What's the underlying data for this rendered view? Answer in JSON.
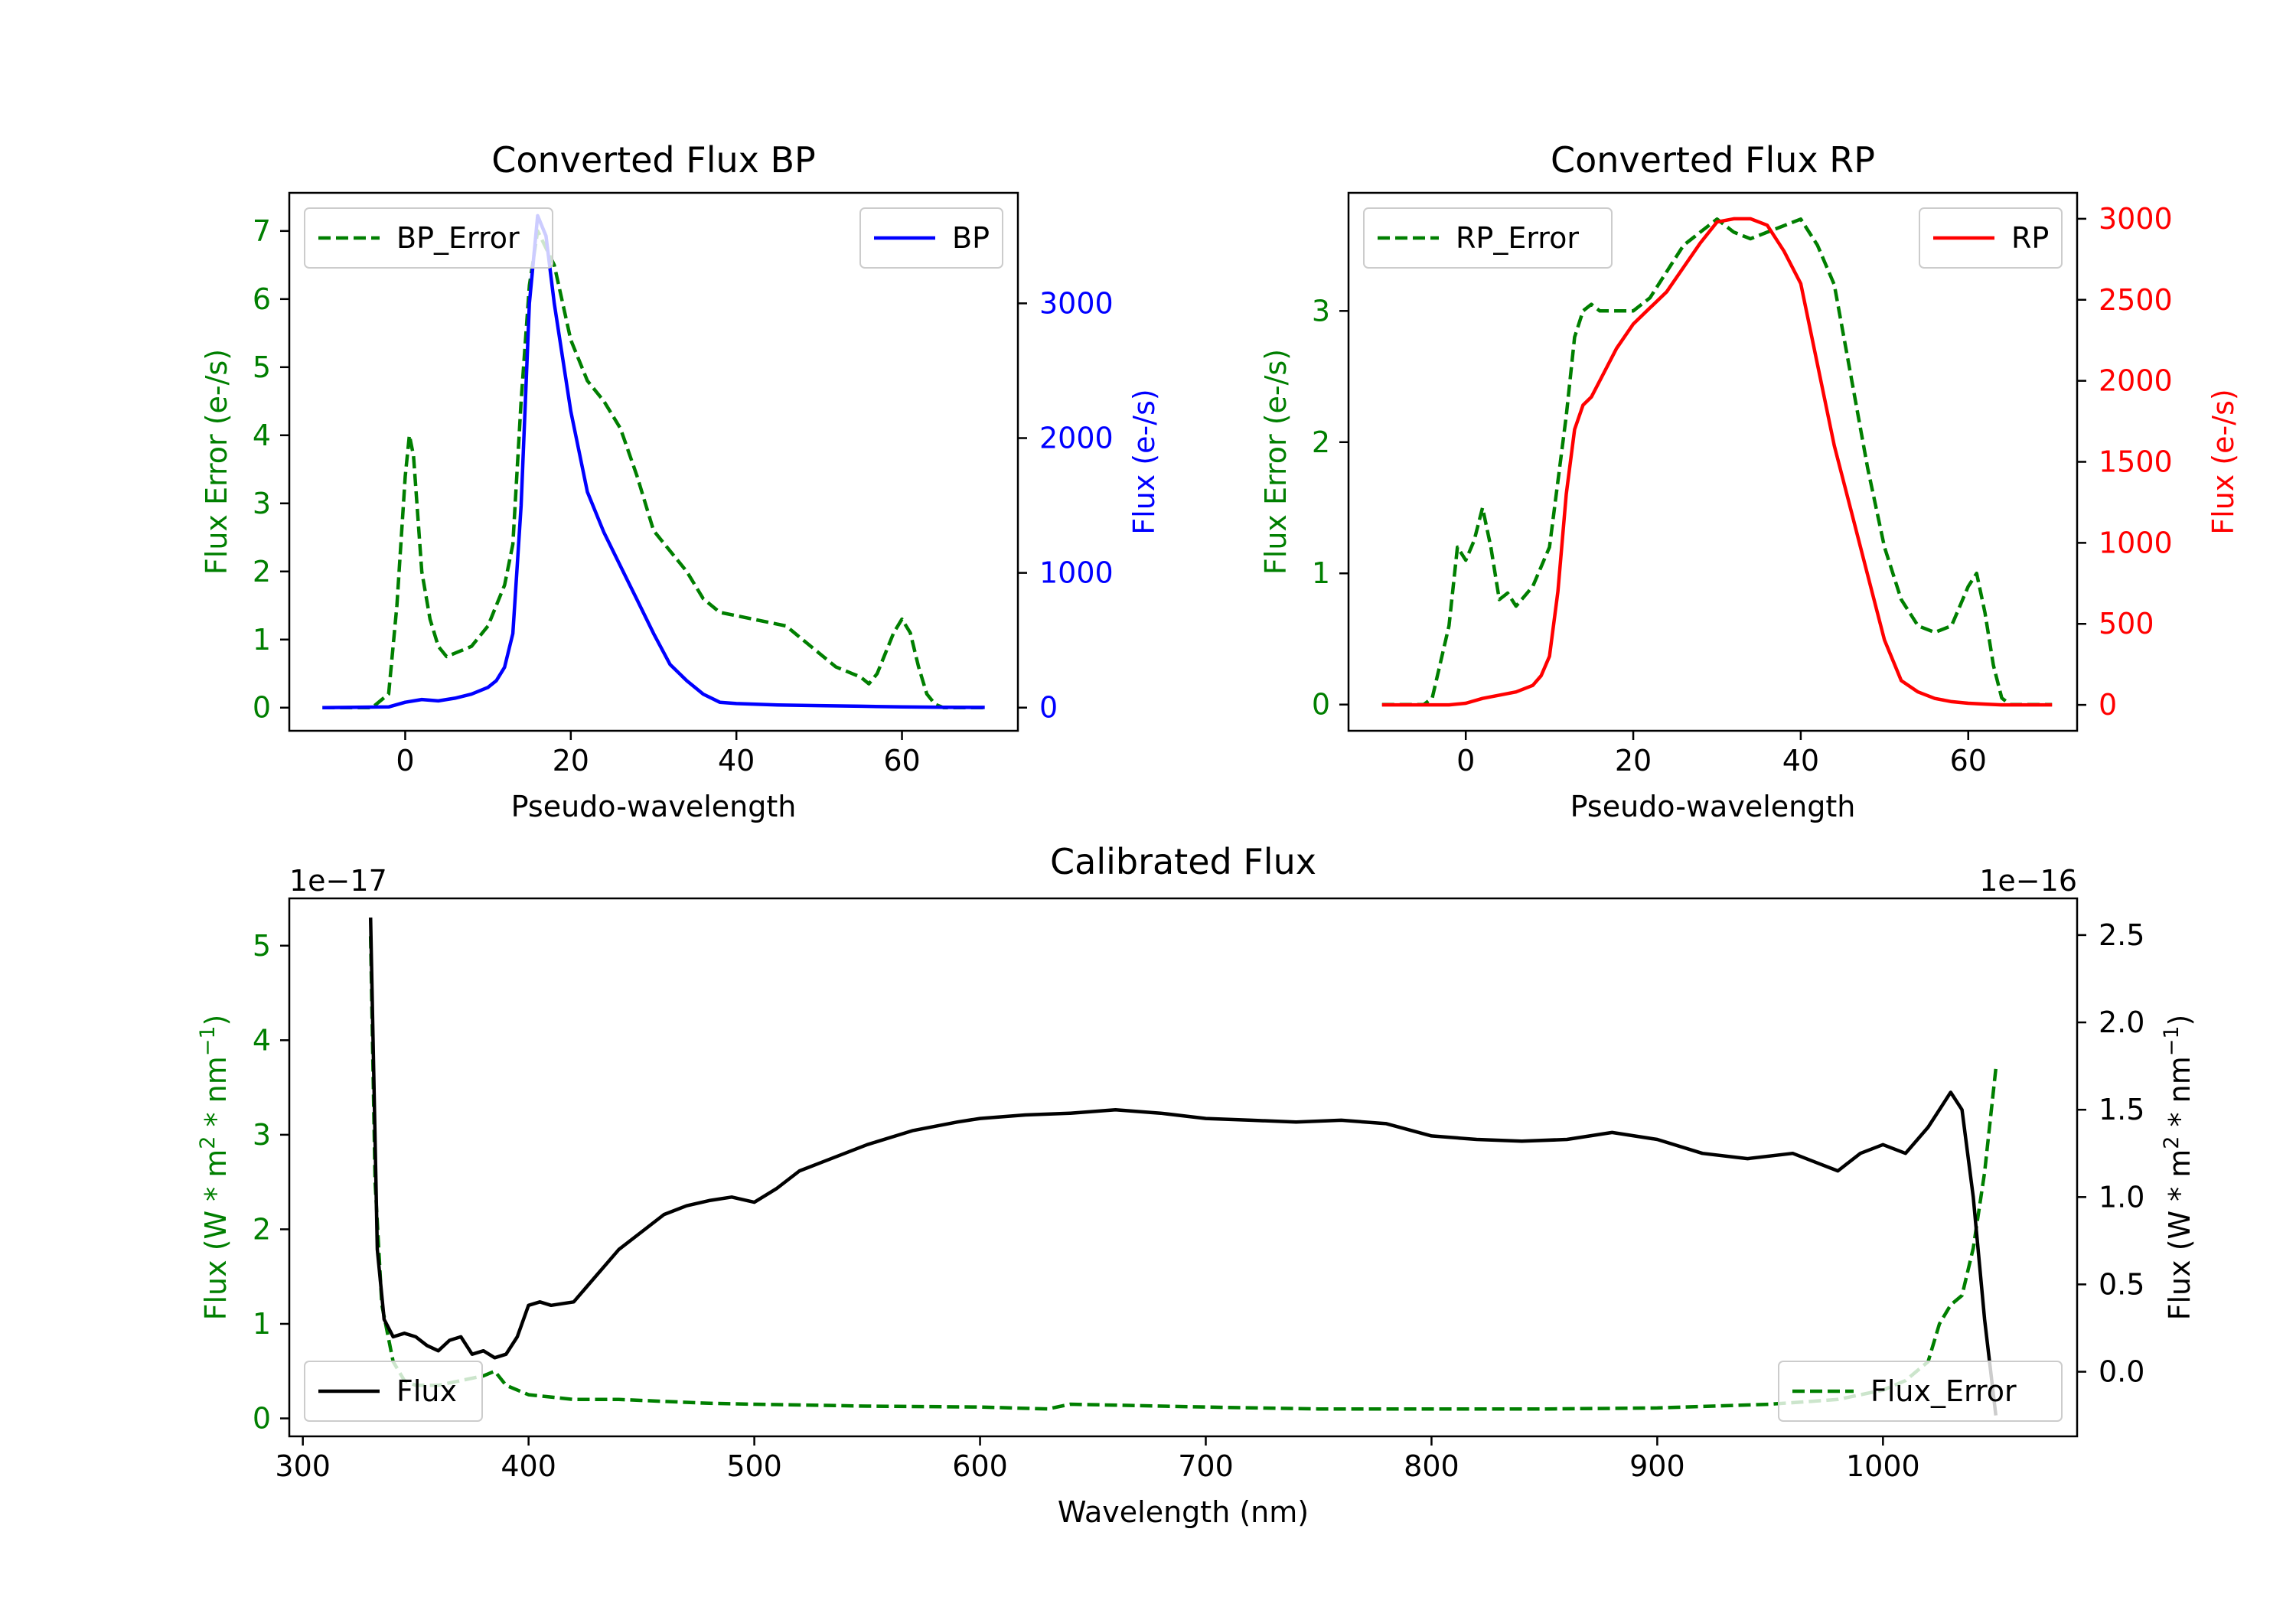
{
  "chart_data": [
    {
      "type": "line",
      "title": "Converted Flux BP",
      "xlabel": "Pseudo-wavelength",
      "ylabel_left": "Flux Error (e-/s)",
      "ylabel_right": "Flux (e-/s)",
      "xlim": [
        -14,
        74
      ],
      "ylim_left": [
        -0.34,
        7.56
      ],
      "ylim_right": [
        -172,
        3820
      ],
      "xticks": [
        "0",
        "20",
        "40",
        "60"
      ],
      "yticks_left": [
        "0",
        "1",
        "2",
        "3",
        "4",
        "5",
        "6",
        "7"
      ],
      "yticks_right": [
        "0",
        "1000",
        "2000",
        "3000"
      ],
      "series": [
        {
          "name": "BP_Error",
          "axis": "left",
          "style": "dashed",
          "color": "#007f00",
          "x": [
            -10,
            -4,
            -2,
            -1,
            0,
            0.5,
            1,
            2,
            3,
            4,
            5,
            6,
            8,
            10,
            12,
            13,
            14,
            15,
            16,
            18,
            20,
            22,
            24,
            26,
            28,
            30,
            32,
            34,
            36,
            38,
            40,
            42,
            44,
            46,
            48,
            50,
            52,
            54,
            55,
            56,
            57,
            58,
            59,
            60,
            61,
            62,
            63,
            64,
            65,
            66,
            68,
            70
          ],
          "values": [
            0,
            0,
            0.2,
            1.5,
            3.4,
            4,
            3.7,
            2,
            1.3,
            0.9,
            0.75,
            0.8,
            0.9,
            1.2,
            1.8,
            2.4,
            4.5,
            6.2,
            7,
            6.5,
            5.4,
            4.8,
            4.5,
            4.1,
            3.4,
            2.6,
            2.3,
            2,
            1.6,
            1.4,
            1.35,
            1.3,
            1.25,
            1.2,
            1,
            0.8,
            0.6,
            0.5,
            0.45,
            0.35,
            0.5,
            0.8,
            1.1,
            1.3,
            1.1,
            0.6,
            0.2,
            0.05,
            0,
            0,
            0,
            0
          ]
        },
        {
          "name": "BP",
          "axis": "right",
          "style": "solid",
          "color": "#0000ff",
          "x": [
            -10,
            -2,
            0,
            2,
            4,
            6,
            8,
            10,
            11,
            12,
            13,
            14,
            15,
            16,
            17,
            18,
            20,
            22,
            24,
            26,
            28,
            30,
            32,
            34,
            36,
            38,
            40,
            45,
            50,
            55,
            60,
            65,
            70
          ],
          "values": [
            0,
            5,
            40,
            60,
            50,
            70,
            100,
            150,
            200,
            300,
            550,
            1500,
            3000,
            3650,
            3500,
            3000,
            2200,
            1600,
            1300,
            1050,
            800,
            550,
            320,
            200,
            100,
            40,
            30,
            20,
            15,
            10,
            5,
            3,
            2
          ]
        }
      ],
      "legend": [
        {
          "label": "BP_Error",
          "position": "upper-left"
        },
        {
          "label": "BP",
          "position": "upper-right"
        }
      ]
    },
    {
      "type": "line",
      "title": "Converted Flux RP",
      "xlabel": "Pseudo-wavelength",
      "ylabel_left": "Flux Error (e-/s)",
      "ylabel_right": "Flux (e-/s)",
      "xlim": [
        -14,
        73
      ],
      "ylim_left": [
        -0.2,
        3.9
      ],
      "ylim_right": [
        -160,
        3160
      ],
      "xticks": [
        "0",
        "20",
        "40",
        "60"
      ],
      "yticks_left": [
        "0",
        "1",
        "2",
        "3"
      ],
      "yticks_right": [
        "0",
        "500",
        "1000",
        "1500",
        "2000",
        "2500",
        "3000"
      ],
      "series": [
        {
          "name": "RP_Error",
          "axis": "left",
          "style": "dashed",
          "color": "#007f00",
          "x": [
            -10,
            -5,
            -4,
            -2,
            -1,
            0,
            1,
            2,
            3,
            4,
            5,
            6,
            8,
            10,
            12,
            13,
            14,
            15,
            16,
            18,
            20,
            22,
            24,
            26,
            28,
            30,
            32,
            34,
            36,
            38,
            40,
            42,
            44,
            46,
            48,
            50,
            52,
            54,
            56,
            58,
            60,
            61,
            62,
            63,
            64,
            65,
            70
          ],
          "values": [
            0,
            0,
            0.05,
            0.6,
            1.2,
            1.1,
            1.25,
            1.5,
            1.2,
            0.8,
            0.85,
            0.75,
            0.9,
            1.2,
            2.2,
            2.8,
            3,
            3.05,
            3.0,
            3.0,
            3.0,
            3.1,
            3.3,
            3.5,
            3.6,
            3.7,
            3.6,
            3.55,
            3.6,
            3.65,
            3.7,
            3.5,
            3.2,
            2.5,
            1.8,
            1.2,
            0.8,
            0.6,
            0.55,
            0.6,
            0.9,
            1.0,
            0.7,
            0.3,
            0.05,
            0,
            0
          ]
        },
        {
          "name": "RP",
          "axis": "right",
          "style": "solid",
          "color": "#ff0000",
          "x": [
            -10,
            -4,
            -2,
            0,
            2,
            4,
            6,
            8,
            9,
            10,
            11,
            12,
            13,
            14,
            15,
            16,
            18,
            20,
            22,
            24,
            26,
            28,
            30,
            32,
            34,
            36,
            38,
            40,
            42,
            44,
            46,
            48,
            50,
            52,
            54,
            56,
            58,
            60,
            62,
            64,
            66,
            70
          ],
          "values": [
            0,
            0,
            0,
            10,
            40,
            60,
            80,
            120,
            180,
            300,
            700,
            1300,
            1700,
            1850,
            1900,
            2000,
            2200,
            2350,
            2450,
            2550,
            2700,
            2850,
            2980,
            3000,
            3000,
            2960,
            2800,
            2600,
            2100,
            1600,
            1200,
            800,
            400,
            150,
            80,
            40,
            20,
            10,
            5,
            0,
            0,
            0
          ]
        }
      ],
      "legend": [
        {
          "label": "RP_Error",
          "position": "upper-left"
        },
        {
          "label": "RP",
          "position": "upper-right"
        }
      ]
    },
    {
      "type": "line",
      "title": "Calibrated Flux",
      "xlabel": "Wavelength (nm)",
      "ylabel_left": "Flux (W * m$^2$ * nm$^{-1}$)",
      "ylabel_right": "Flux (W * m$^2$ * nm$^{-1}$)",
      "offset_left": "1e−17",
      "offset_right": "1e−16",
      "xlim": [
        294,
        1086
      ],
      "ylim_left": [
        -0.19,
        5.5
      ],
      "ylim_right": [
        -0.37,
        2.71
      ],
      "xticks": [
        "300",
        "400",
        "500",
        "600",
        "700",
        "800",
        "900",
        "1000"
      ],
      "yticks_left": [
        "0",
        "1",
        "2",
        "3",
        "4",
        "5"
      ],
      "yticks_right": [
        "0.0",
        "0.5",
        "1.0",
        "1.5",
        "2.0",
        "2.5"
      ],
      "series": [
        {
          "name": "Flux_Error",
          "axis": "left",
          "style": "dashed",
          "color": "#007f00",
          "x": [
            330,
            332,
            335,
            340,
            345,
            350,
            360,
            370,
            380,
            385,
            390,
            400,
            420,
            440,
            460,
            480,
            500,
            550,
            600,
            630,
            640,
            700,
            750,
            800,
            850,
            900,
            950,
            980,
            1000,
            1010,
            1020,
            1025,
            1030,
            1035,
            1040,
            1045,
            1050
          ],
          "values": [
            5.1,
            2.5,
            1.2,
            0.6,
            0.4,
            0.35,
            0.35,
            0.4,
            0.45,
            0.5,
            0.35,
            0.25,
            0.2,
            0.2,
            0.18,
            0.16,
            0.15,
            0.13,
            0.12,
            0.1,
            0.15,
            0.12,
            0.1,
            0.1,
            0.1,
            0.11,
            0.15,
            0.2,
            0.3,
            0.4,
            0.6,
            1.0,
            1.2,
            1.3,
            1.8,
            2.6,
            3.7
          ]
        },
        {
          "name": "Flux",
          "axis": "right",
          "style": "solid",
          "color": "#000000",
          "x": [
            330,
            333,
            336,
            340,
            345,
            350,
            355,
            360,
            365,
            370,
            375,
            380,
            385,
            390,
            395,
            400,
            405,
            410,
            420,
            430,
            440,
            450,
            460,
            470,
            480,
            490,
            500,
            510,
            520,
            530,
            550,
            570,
            590,
            600,
            620,
            640,
            660,
            680,
            700,
            720,
            740,
            760,
            780,
            800,
            820,
            840,
            860,
            880,
            900,
            920,
            940,
            960,
            970,
            980,
            990,
            1000,
            1010,
            1020,
            1030,
            1035,
            1040,
            1045,
            1050
          ],
          "values": [
            2.6,
            0.7,
            0.3,
            0.2,
            0.22,
            0.2,
            0.15,
            0.12,
            0.18,
            0.2,
            0.1,
            0.12,
            0.08,
            0.1,
            0.2,
            0.38,
            0.4,
            0.38,
            0.4,
            0.55,
            0.7,
            0.8,
            0.9,
            0.95,
            0.98,
            1.0,
            0.97,
            1.05,
            1.15,
            1.2,
            1.3,
            1.38,
            1.43,
            1.45,
            1.47,
            1.48,
            1.5,
            1.48,
            1.45,
            1.44,
            1.43,
            1.44,
            1.42,
            1.35,
            1.33,
            1.32,
            1.33,
            1.37,
            1.33,
            1.25,
            1.22,
            1.25,
            1.2,
            1.15,
            1.25,
            1.3,
            1.25,
            1.4,
            1.6,
            1.5,
            1.0,
            0.3,
            -0.25
          ]
        }
      ],
      "legend": [
        {
          "label": "Flux",
          "position": "lower-left"
        },
        {
          "label": "Flux_Error",
          "position": "lower-right"
        }
      ]
    }
  ]
}
